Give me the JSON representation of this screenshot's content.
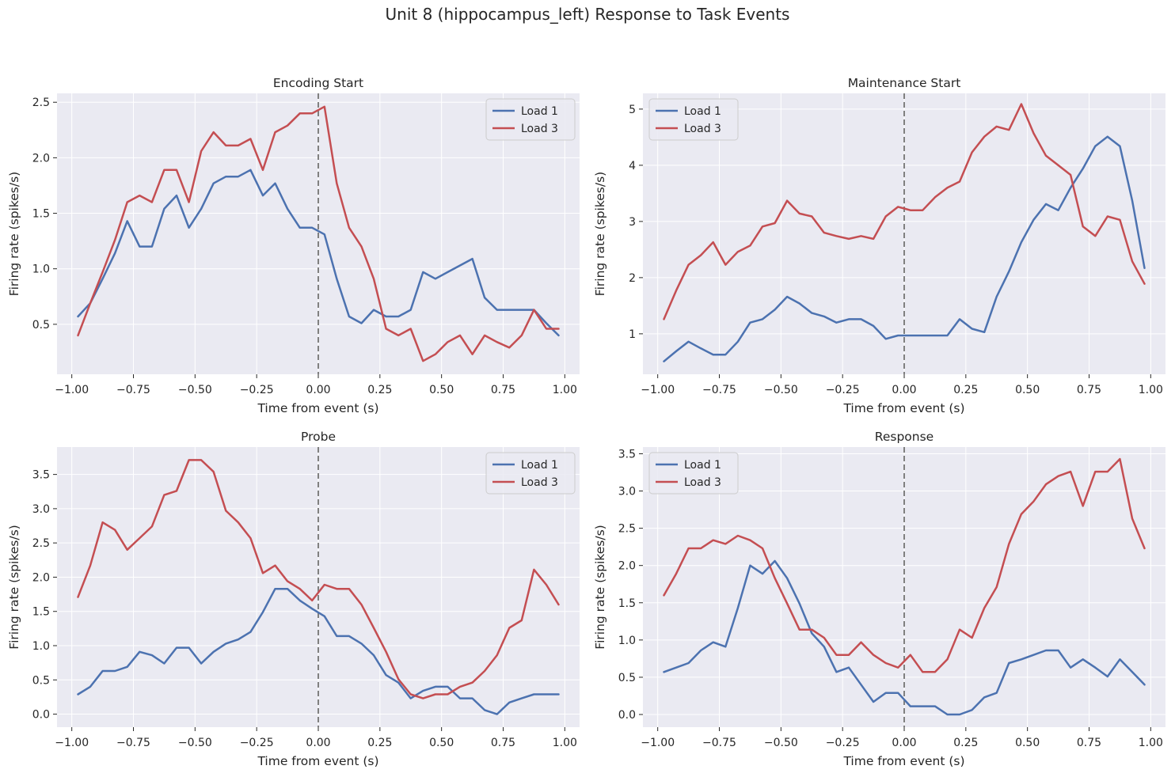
{
  "title": "Unit 8 (hippocampus_left) Response to Task Events",
  "chart_data": [
    {
      "type": "line",
      "title": "Encoding Start",
      "xlabel": "Time from event (s)",
      "ylabel": "Firing rate (spikes/s)",
      "xlim": [
        -1.06,
        1.06
      ],
      "ylim": [
        0.05,
        2.58
      ],
      "xticks": [
        -1.0,
        -0.75,
        -0.5,
        -0.25,
        0.0,
        0.25,
        0.5,
        0.75,
        1.0
      ],
      "xtick_labels": [
        "−1.00",
        "−0.75",
        "−0.50",
        "−0.25",
        "0.00",
        "0.25",
        "0.50",
        "0.75",
        "1.00"
      ],
      "yticks": [
        0.5,
        1.0,
        1.5,
        2.0,
        2.5
      ],
      "ytick_labels": [
        "0.5",
        "1.0",
        "1.5",
        "2.0",
        "2.5"
      ],
      "legend": "upper right",
      "grid": true,
      "event_line": 0.0,
      "x": [
        -0.975,
        -0.925,
        -0.875,
        -0.825,
        -0.775,
        -0.725,
        -0.675,
        -0.625,
        -0.575,
        -0.525,
        -0.475,
        -0.425,
        -0.375,
        -0.325,
        -0.275,
        -0.225,
        -0.175,
        -0.125,
        -0.075,
        -0.025,
        0.025,
        0.075,
        0.125,
        0.175,
        0.225,
        0.275,
        0.325,
        0.375,
        0.425,
        0.475,
        0.525,
        0.575,
        0.625,
        0.675,
        0.725,
        0.775,
        0.825,
        0.875,
        0.925,
        0.975
      ],
      "series": [
        {
          "name": "Load 1",
          "color": "#4c72b0",
          "values": [
            0.57,
            0.69,
            0.91,
            1.14,
            1.43,
            1.2,
            1.2,
            1.54,
            1.66,
            1.37,
            1.54,
            1.77,
            1.83,
            1.83,
            1.89,
            1.66,
            1.77,
            1.54,
            1.37,
            1.37,
            1.31,
            0.91,
            0.57,
            0.51,
            0.63,
            0.57,
            0.57,
            0.63,
            0.97,
            0.91,
            0.97,
            1.03,
            1.09,
            0.74,
            0.63,
            0.63,
            0.63,
            0.63,
            0.51,
            0.4
          ]
        },
        {
          "name": "Load 3",
          "color": "#c44e52",
          "values": [
            0.4,
            0.69,
            0.97,
            1.26,
            1.6,
            1.66,
            1.6,
            1.89,
            1.89,
            1.6,
            2.06,
            2.23,
            2.11,
            2.11,
            2.17,
            1.89,
            2.23,
            2.29,
            2.4,
            2.4,
            2.46,
            1.77,
            1.37,
            1.2,
            0.91,
            0.46,
            0.4,
            0.46,
            0.17,
            0.23,
            0.34,
            0.4,
            0.23,
            0.4,
            0.34,
            0.29,
            0.4,
            0.63,
            0.46,
            0.46
          ]
        }
      ]
    },
    {
      "type": "line",
      "title": "Maintenance Start",
      "xlabel": "Time from event (s)",
      "ylabel": "Firing rate (spikes/s)",
      "xlim": [
        -1.06,
        1.06
      ],
      "ylim": [
        0.28,
        5.28
      ],
      "xticks": [
        -1.0,
        -0.75,
        -0.5,
        -0.25,
        0.0,
        0.25,
        0.5,
        0.75,
        1.0
      ],
      "xtick_labels": [
        "−1.00",
        "−0.75",
        "−0.50",
        "−0.25",
        "0.00",
        "0.25",
        "0.50",
        "0.75",
        "1.00"
      ],
      "yticks": [
        1,
        2,
        3,
        4,
        5
      ],
      "ytick_labels": [
        "1",
        "2",
        "3",
        "4",
        "5"
      ],
      "legend": "upper left",
      "grid": true,
      "event_line": 0.0,
      "x": [
        -0.975,
        -0.925,
        -0.875,
        -0.825,
        -0.775,
        -0.725,
        -0.675,
        -0.625,
        -0.575,
        -0.525,
        -0.475,
        -0.425,
        -0.375,
        -0.325,
        -0.275,
        -0.225,
        -0.175,
        -0.125,
        -0.075,
        -0.025,
        0.025,
        0.075,
        0.125,
        0.175,
        0.225,
        0.275,
        0.325,
        0.375,
        0.425,
        0.475,
        0.525,
        0.575,
        0.625,
        0.675,
        0.725,
        0.775,
        0.825,
        0.875,
        0.925,
        0.975
      ],
      "series": [
        {
          "name": "Load 1",
          "color": "#4c72b0",
          "values": [
            0.51,
            0.69,
            0.86,
            0.74,
            0.63,
            0.63,
            0.86,
            1.2,
            1.26,
            1.43,
            1.66,
            1.54,
            1.37,
            1.31,
            1.2,
            1.26,
            1.26,
            1.14,
            0.91,
            0.97,
            0.97,
            0.97,
            0.97,
            0.97,
            1.26,
            1.09,
            1.03,
            1.66,
            2.11,
            2.63,
            3.03,
            3.31,
            3.2,
            3.6,
            3.94,
            4.34,
            4.51,
            4.34,
            3.37,
            2.17
          ]
        },
        {
          "name": "Load 3",
          "color": "#c44e52",
          "values": [
            1.26,
            1.77,
            2.23,
            2.4,
            2.63,
            2.23,
            2.46,
            2.57,
            2.91,
            2.97,
            3.37,
            3.14,
            3.09,
            2.8,
            2.74,
            2.69,
            2.74,
            2.69,
            3.09,
            3.26,
            3.2,
            3.2,
            3.43,
            3.6,
            3.71,
            4.23,
            4.51,
            4.69,
            4.63,
            5.09,
            4.57,
            4.17,
            4.0,
            3.83,
            2.91,
            2.74,
            3.09,
            3.03,
            2.29,
            1.89
          ]
        }
      ]
    },
    {
      "type": "line",
      "title": "Probe",
      "xlabel": "Time from event (s)",
      "ylabel": "Firing rate (spikes/s)",
      "xlim": [
        -1.06,
        1.06
      ],
      "ylim": [
        -0.19,
        3.9
      ],
      "xticks": [
        -1.0,
        -0.75,
        -0.5,
        -0.25,
        0.0,
        0.25,
        0.5,
        0.75,
        1.0
      ],
      "xtick_labels": [
        "−1.00",
        "−0.75",
        "−0.50",
        "−0.25",
        "0.00",
        "0.25",
        "0.50",
        "0.75",
        "1.00"
      ],
      "yticks": [
        0.0,
        0.5,
        1.0,
        1.5,
        2.0,
        2.5,
        3.0,
        3.5
      ],
      "ytick_labels": [
        "0.0",
        "0.5",
        "1.0",
        "1.5",
        "2.0",
        "2.5",
        "3.0",
        "3.5"
      ],
      "legend": "upper right",
      "grid": true,
      "event_line": 0.0,
      "x": [
        -0.975,
        -0.925,
        -0.875,
        -0.825,
        -0.775,
        -0.725,
        -0.675,
        -0.625,
        -0.575,
        -0.525,
        -0.475,
        -0.425,
        -0.375,
        -0.325,
        -0.275,
        -0.225,
        -0.175,
        -0.125,
        -0.075,
        -0.025,
        0.025,
        0.075,
        0.125,
        0.175,
        0.225,
        0.275,
        0.325,
        0.375,
        0.425,
        0.475,
        0.525,
        0.575,
        0.625,
        0.675,
        0.725,
        0.775,
        0.825,
        0.875,
        0.925,
        0.975
      ],
      "series": [
        {
          "name": "Load 1",
          "color": "#4c72b0",
          "values": [
            0.29,
            0.4,
            0.63,
            0.63,
            0.69,
            0.91,
            0.86,
            0.74,
            0.97,
            0.97,
            0.74,
            0.91,
            1.03,
            1.09,
            1.2,
            1.49,
            1.83,
            1.83,
            1.66,
            1.54,
            1.43,
            1.14,
            1.14,
            1.03,
            0.86,
            0.57,
            0.46,
            0.23,
            0.34,
            0.4,
            0.4,
            0.23,
            0.23,
            0.06,
            0.0,
            0.17,
            0.23,
            0.29,
            0.29,
            0.29
          ]
        },
        {
          "name": "Load 3",
          "color": "#c44e52",
          "values": [
            1.71,
            2.17,
            2.8,
            2.69,
            2.4,
            2.57,
            2.74,
            3.2,
            3.26,
            3.71,
            3.71,
            3.54,
            2.97,
            2.8,
            2.57,
            2.06,
            2.17,
            1.94,
            1.83,
            1.66,
            1.89,
            1.83,
            1.83,
            1.6,
            1.26,
            0.91,
            0.51,
            0.29,
            0.23,
            0.29,
            0.29,
            0.4,
            0.46,
            0.63,
            0.86,
            1.26,
            1.37,
            2.11,
            1.89,
            1.6
          ]
        }
      ]
    },
    {
      "type": "line",
      "title": "Response",
      "xlabel": "Time from event (s)",
      "ylabel": "Firing rate (spikes/s)",
      "xlim": [
        -1.06,
        1.06
      ],
      "ylim": [
        -0.17,
        3.59
      ],
      "xticks": [
        -1.0,
        -0.75,
        -0.5,
        -0.25,
        0.0,
        0.25,
        0.5,
        0.75,
        1.0
      ],
      "xtick_labels": [
        "−1.00",
        "−0.75",
        "−0.50",
        "−0.25",
        "0.00",
        "0.25",
        "0.50",
        "0.75",
        "1.00"
      ],
      "yticks": [
        0.0,
        0.5,
        1.0,
        1.5,
        2.0,
        2.5,
        3.0,
        3.5
      ],
      "ytick_labels": [
        "0.0",
        "0.5",
        "1.0",
        "1.5",
        "2.0",
        "2.5",
        "3.0",
        "3.5"
      ],
      "legend": "upper left",
      "grid": true,
      "event_line": 0.0,
      "x": [
        -0.975,
        -0.925,
        -0.875,
        -0.825,
        -0.775,
        -0.725,
        -0.675,
        -0.625,
        -0.575,
        -0.525,
        -0.475,
        -0.425,
        -0.375,
        -0.325,
        -0.275,
        -0.225,
        -0.175,
        -0.125,
        -0.075,
        -0.025,
        0.025,
        0.075,
        0.125,
        0.175,
        0.225,
        0.275,
        0.325,
        0.375,
        0.425,
        0.475,
        0.525,
        0.575,
        0.625,
        0.675,
        0.725,
        0.775,
        0.825,
        0.875,
        0.925,
        0.975
      ],
      "series": [
        {
          "name": "Load 1",
          "color": "#4c72b0",
          "values": [
            0.57,
            0.63,
            0.69,
            0.86,
            0.97,
            0.91,
            1.43,
            2.0,
            1.89,
            2.06,
            1.83,
            1.49,
            1.09,
            0.91,
            0.57,
            0.63,
            0.4,
            0.17,
            0.29,
            0.29,
            0.11,
            0.11,
            0.11,
            0.0,
            0.0,
            0.06,
            0.23,
            0.29,
            0.69,
            0.74,
            0.8,
            0.86,
            0.86,
            0.63,
            0.74,
            0.63,
            0.51,
            0.74,
            0.57,
            0.4
          ]
        },
        {
          "name": "Load 3",
          "color": "#c44e52",
          "values": [
            1.6,
            1.89,
            2.23,
            2.23,
            2.34,
            2.29,
            2.4,
            2.34,
            2.23,
            1.83,
            1.49,
            1.14,
            1.14,
            1.03,
            0.8,
            0.8,
            0.97,
            0.8,
            0.69,
            0.63,
            0.8,
            0.57,
            0.57,
            0.74,
            1.14,
            1.03,
            1.43,
            1.71,
            2.29,
            2.69,
            2.86,
            3.09,
            3.2,
            3.26,
            2.8,
            3.26,
            3.26,
            3.43,
            2.63,
            2.23
          ]
        }
      ]
    }
  ]
}
